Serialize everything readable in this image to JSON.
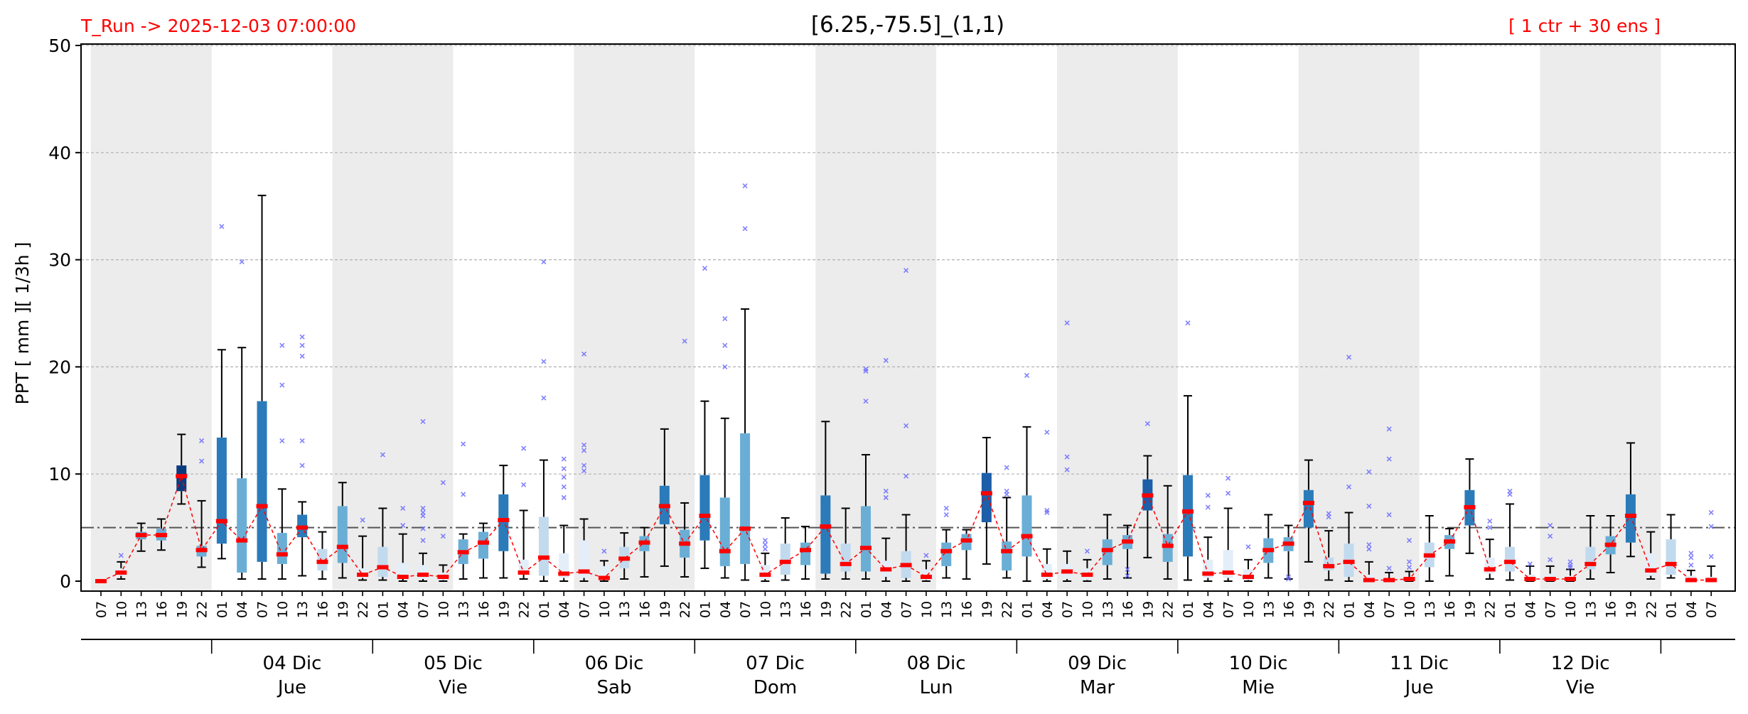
{
  "header": {
    "run_label": "T_Run -> 2025-12-03  07:00:00",
    "title": "[6.25,-75.5]_(1,1)",
    "ensemble_label": "[ 1 ctr + 30 ens ]"
  },
  "colors": {
    "header_text": "#ff0000",
    "median": "#ff0000",
    "outlier": "#6b6bff",
    "shade": "#ececec",
    "box_scale": [
      "#e3eef9",
      "#c2daee",
      "#6aaed6",
      "#2b7bba",
      "#1c5ea8",
      "#0b3a7e"
    ]
  },
  "chart_data": {
    "type": "box",
    "ylabel": "PPT  [ mm ][ 1/3h ]",
    "ylim": [
      0,
      50
    ],
    "yticks": [
      0,
      10,
      20,
      30,
      40,
      50
    ],
    "grid": true,
    "threshold": 5,
    "hours": [
      "07",
      "10",
      "13",
      "16",
      "19",
      "22",
      "01",
      "04",
      "07",
      "10",
      "13",
      "16",
      "19",
      "22",
      "01",
      "04",
      "07",
      "10",
      "13",
      "16",
      "19",
      "22",
      "01",
      "04",
      "07",
      "10",
      "13",
      "16",
      "19",
      "22",
      "01",
      "04",
      "07",
      "10",
      "13",
      "16",
      "19",
      "22",
      "01",
      "04",
      "07",
      "10",
      "13",
      "16",
      "19",
      "22",
      "01",
      "04",
      "07",
      "10",
      "13",
      "16",
      "19",
      "22",
      "01",
      "04",
      "07",
      "10",
      "13",
      "16",
      "19",
      "22",
      "01",
      "04",
      "07",
      "10",
      "13",
      "16",
      "19",
      "22",
      "01",
      "04",
      "07",
      "10",
      "13",
      "16",
      "19",
      "22",
      "01",
      "04",
      "07"
    ],
    "days": [
      {
        "date": "04 Dic",
        "weekday": "Jue"
      },
      {
        "date": "05 Dic",
        "weekday": "Vie"
      },
      {
        "date": "06 Dic",
        "weekday": "Sab"
      },
      {
        "date": "07 Dic",
        "weekday": "Dom"
      },
      {
        "date": "08 Dic",
        "weekday": "Lun"
      },
      {
        "date": "09 Dic",
        "weekday": "Mar"
      },
      {
        "date": "10 Dic",
        "weekday": "Mie"
      },
      {
        "date": "11 Dic",
        "weekday": "Jue"
      },
      {
        "date": "12 Dic",
        "weekday": "Vie"
      }
    ],
    "boxes": [
      [
        0,
        0,
        0,
        0,
        0,
        []
      ],
      [
        0.2,
        0.5,
        0.8,
        1.2,
        1.8,
        [
          2.4
        ]
      ],
      [
        2.8,
        3.9,
        4.3,
        4.6,
        5.4,
        []
      ],
      [
        2.9,
        3.8,
        4.3,
        4.9,
        5.8,
        []
      ],
      [
        7.2,
        8.4,
        9.8,
        10.8,
        13.7,
        []
      ],
      [
        1.3,
        2.3,
        2.9,
        3.3,
        7.5,
        [
          11.2,
          13.1
        ]
      ],
      [
        2.1,
        3.5,
        5.6,
        13.4,
        21.6,
        [
          33.1
        ]
      ],
      [
        0.2,
        0.8,
        3.8,
        9.6,
        21.8,
        [
          29.8
        ]
      ],
      [
        0.2,
        1.8,
        7.0,
        16.8,
        36.0,
        []
      ],
      [
        0.2,
        1.6,
        2.5,
        4.5,
        8.6,
        [
          13.1,
          18.3,
          22.0
        ]
      ],
      [
        0.5,
        4.1,
        5.0,
        6.2,
        7.4,
        [
          10.8,
          13.1,
          21.0,
          22.0,
          22.8
        ]
      ],
      [
        0.2,
        1.0,
        1.8,
        3.0,
        4.6,
        []
      ],
      [
        0.3,
        1.7,
        3.2,
        7.0,
        9.2,
        []
      ],
      [
        0.1,
        0.3,
        0.6,
        1.2,
        4.2,
        [
          5.7
        ]
      ],
      [
        0.1,
        0.4,
        1.3,
        3.2,
        6.8,
        [
          11.8
        ]
      ],
      [
        0.0,
        0.2,
        0.4,
        1.7,
        4.4,
        [
          5.2,
          6.8
        ]
      ],
      [
        0.0,
        0.2,
        0.6,
        1.5,
        2.6,
        [
          3.8,
          4.9,
          6.1,
          6.4,
          6.8,
          14.9
        ]
      ],
      [
        0.0,
        0.1,
        0.4,
        0.8,
        1.5,
        [
          4.2,
          9.2
        ]
      ],
      [
        0.2,
        1.6,
        2.7,
        3.9,
        4.4,
        [
          8.1,
          12.8
        ]
      ],
      [
        0.3,
        2.1,
        3.6,
        4.6,
        5.4,
        []
      ],
      [
        0.3,
        2.8,
        5.7,
        8.1,
        10.8,
        []
      ],
      [
        0.2,
        0.6,
        0.8,
        2.0,
        6.6,
        [
          9.0,
          12.4
        ]
      ],
      [
        0.0,
        0.5,
        2.2,
        6.0,
        11.3,
        [
          17.1,
          20.5,
          29.8
        ]
      ],
      [
        0.0,
        0.3,
        0.7,
        2.6,
        5.2,
        [
          7.8,
          8.8,
          9.7,
          10.5,
          11.4
        ]
      ],
      [
        0.0,
        0.3,
        0.9,
        3.8,
        5.8,
        [
          10.3,
          10.8,
          12.2,
          12.7,
          21.2
        ]
      ],
      [
        0.0,
        0.2,
        0.3,
        1.4,
        1.9,
        [
          2.8
        ]
      ],
      [
        0.2,
        1.2,
        2.1,
        3.2,
        4.5,
        []
      ],
      [
        0.4,
        2.8,
        3.6,
        4.2,
        5.0,
        []
      ],
      [
        1.4,
        5.3,
        7.0,
        8.9,
        14.2,
        []
      ],
      [
        0.4,
        2.2,
        3.5,
        4.8,
        7.3,
        [
          22.4
        ]
      ],
      [
        1.2,
        3.8,
        6.1,
        9.9,
        16.8,
        [
          29.2
        ]
      ],
      [
        0.3,
        1.4,
        2.8,
        7.8,
        15.2,
        [
          20.0,
          22.0,
          24.5
        ]
      ],
      [
        0.1,
        1.6,
        4.9,
        13.8,
        25.4,
        [
          32.9,
          36.9
        ]
      ],
      [
        0.0,
        0.2,
        0.6,
        1.5,
        2.6,
        [
          3.0,
          3.4,
          3.8
        ]
      ],
      [
        0.1,
        0.6,
        1.8,
        3.5,
        5.9,
        []
      ],
      [
        0.2,
        1.5,
        2.9,
        3.6,
        5.1,
        []
      ],
      [
        0.2,
        0.7,
        5.1,
        8.0,
        14.9,
        []
      ],
      [
        0.2,
        0.9,
        1.6,
        3.5,
        6.8,
        []
      ],
      [
        0.2,
        0.9,
        3.1,
        7.0,
        11.8,
        [
          16.8,
          19.6,
          19.8
        ]
      ],
      [
        0.0,
        0.4,
        1.1,
        1.9,
        4.0,
        [
          7.8,
          8.4,
          20.6
        ]
      ],
      [
        0.0,
        0.3,
        1.5,
        2.8,
        6.2,
        [
          9.8,
          14.5,
          29.0
        ]
      ],
      [
        0.0,
        0.1,
        0.4,
        1.1,
        1.9,
        [
          2.4
        ]
      ],
      [
        0.3,
        1.4,
        2.8,
        3.6,
        4.8,
        [
          6.2,
          6.8
        ]
      ],
      [
        0.2,
        2.9,
        3.8,
        4.4,
        4.8,
        []
      ],
      [
        1.6,
        5.5,
        8.2,
        10.1,
        13.4,
        []
      ],
      [
        0.3,
        1.0,
        2.8,
        3.7,
        7.8,
        [
          8.1,
          8.4,
          10.6
        ]
      ],
      [
        0.0,
        2.3,
        4.2,
        8.0,
        14.4,
        [
          19.2
        ]
      ],
      [
        0.0,
        0.2,
        0.6,
        1.6,
        3.0,
        [
          6.4,
          6.6,
          13.9
        ]
      ],
      [
        0.0,
        0.2,
        0.9,
        1.6,
        2.8,
        [
          10.4,
          11.6,
          24.1
        ]
      ],
      [
        0.0,
        0.1,
        0.6,
        1.2,
        2.0,
        [
          2.8
        ]
      ],
      [
        0.2,
        1.5,
        2.9,
        3.9,
        6.2,
        []
      ],
      [
        0.3,
        3.0,
        3.7,
        4.3,
        5.2,
        [
          0.5,
          1.1
        ]
      ],
      [
        2.2,
        6.6,
        8.0,
        9.5,
        11.7,
        [
          14.7
        ]
      ],
      [
        0.2,
        1.8,
        3.3,
        4.4,
        8.9,
        []
      ],
      [
        0.1,
        2.3,
        6.5,
        9.9,
        17.3,
        [
          24.1
        ]
      ],
      [
        0.0,
        0.3,
        0.7,
        2.0,
        4.1,
        [
          6.9,
          8.0
        ]
      ],
      [
        0.0,
        0.3,
        0.8,
        2.9,
        6.8,
        [
          8.2,
          9.6
        ]
      ],
      [
        0.0,
        0.1,
        0.4,
        1.1,
        2.0,
        [
          3.2
        ]
      ],
      [
        0.3,
        1.7,
        2.9,
        4.0,
        6.2,
        []
      ],
      [
        0.2,
        2.8,
        3.5,
        4.1,
        5.2,
        [
          0.2,
          0.4
        ]
      ],
      [
        1.8,
        5.0,
        7.3,
        8.5,
        11.3,
        []
      ],
      [
        0.1,
        1.0,
        1.4,
        2.2,
        4.7,
        [
          6.0,
          6.3
        ]
      ],
      [
        0.0,
        0.4,
        1.8,
        3.5,
        6.4,
        [
          8.8,
          20.9
        ]
      ],
      [
        0.0,
        0.0,
        0.1,
        0.6,
        1.8,
        [
          3.0,
          3.4,
          7.0,
          10.2
        ]
      ],
      [
        0.0,
        0.0,
        0.1,
        0.3,
        0.8,
        [
          1.2,
          6.2,
          11.4,
          14.2
        ]
      ],
      [
        0.0,
        0.1,
        0.2,
        0.4,
        0.9,
        [
          1.3,
          1.8,
          3.8
        ]
      ],
      [
        0.0,
        1.3,
        2.4,
        3.6,
        6.1,
        []
      ],
      [
        0.5,
        3.0,
        3.7,
        4.3,
        4.9,
        []
      ],
      [
        2.6,
        5.2,
        6.9,
        8.5,
        11.4,
        []
      ],
      [
        0.2,
        0.7,
        1.1,
        2.2,
        3.9,
        [
          5.0,
          5.6
        ]
      ],
      [
        0.1,
        0.9,
        1.8,
        3.2,
        7.2,
        [
          8.1,
          8.4
        ]
      ],
      [
        0.0,
        0.1,
        0.2,
        0.6,
        1.4,
        [
          1.6
        ]
      ],
      [
        0.0,
        0.1,
        0.2,
        0.7,
        1.4,
        [
          2.0,
          4.2,
          5.2
        ]
      ],
      [
        0.0,
        0.1,
        0.2,
        0.5,
        1.1,
        [
          1.3,
          1.5,
          1.8
        ]
      ],
      [
        0.2,
        1.1,
        1.6,
        3.2,
        6.1,
        []
      ],
      [
        0.8,
        2.5,
        3.4,
        4.2,
        6.1,
        []
      ],
      [
        2.3,
        3.6,
        6.1,
        8.1,
        12.9,
        []
      ],
      [
        0.2,
        0.5,
        1.0,
        2.6,
        4.6,
        []
      ],
      [
        0.3,
        0.6,
        1.6,
        3.9,
        6.2,
        []
      ],
      [
        0.0,
        0.0,
        0.1,
        0.5,
        1.0,
        [
          1.5,
          2.2,
          2.6
        ]
      ],
      [
        0.0,
        0.0,
        0.1,
        0.4,
        1.4,
        [
          2.3,
          5.1,
          6.4
        ]
      ]
    ]
  }
}
